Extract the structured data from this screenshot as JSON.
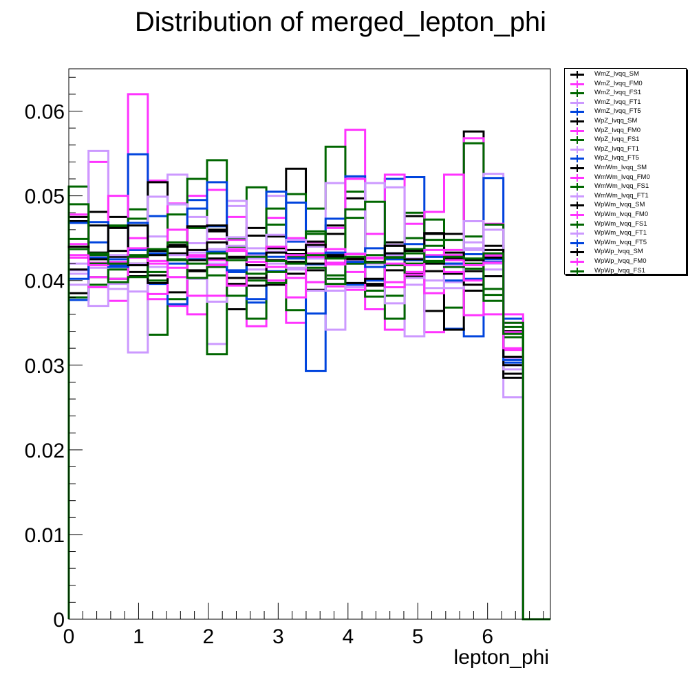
{
  "chart_data": {
    "type": "histogram",
    "title": "Distribution of merged_lepton_phi",
    "xlabel": "lepton_phi",
    "ylabel": "",
    "xlim": [
      0,
      6.9
    ],
    "ylim": [
      0,
      0.065
    ],
    "xticks": [
      "0",
      "1",
      "2",
      "3",
      "4",
      "5",
      "6"
    ],
    "yticks": [
      "0",
      "0.01",
      "0.02",
      "0.03",
      "0.04",
      "0.05",
      "0.06"
    ],
    "bin_edges": [
      0,
      0.283,
      0.566,
      0.849,
      1.132,
      1.415,
      1.698,
      1.981,
      2.264,
      2.547,
      2.83,
      3.113,
      3.396,
      3.679,
      3.962,
      4.245,
      4.528,
      4.811,
      5.094,
      5.377,
      5.66,
      5.943,
      6.226,
      6.509,
      6.9
    ],
    "legend_position": "top-right",
    "series": [
      {
        "name": "WmZ_lvqq_SM",
        "color": "#000000",
        "values": [
          0.0385,
          0.0481,
          0.0475,
          0.041,
          0.0435,
          0.0442,
          0.0411,
          0.046,
          0.0366,
          0.0462,
          0.0395,
          0.0532,
          0.0389,
          0.0465,
          0.0497,
          0.0388,
          0.0445,
          0.0409,
          0.0364,
          0.0455,
          0.0576,
          0.0441,
          0.029,
          0
        ]
      },
      {
        "name": "WmZ_lvqq_FM0",
        "color": "#ff33ff",
        "values": [
          0.0478,
          0.054,
          0.0376,
          0.062,
          0.0518,
          0.037,
          0.05,
          0.0507,
          0.0448,
          0.0346,
          0.0474,
          0.035,
          0.0432,
          0.0462,
          0.0578,
          0.0366,
          0.0342,
          0.0467,
          0.0339,
          0.043,
          0.0568,
          0.036,
          0.035,
          0
        ]
      },
      {
        "name": "WmZ_lvqq_FS1",
        "color": "#006600",
        "values": [
          0.0511,
          0.0418,
          0.0463,
          0.0484,
          0.0336,
          0.0378,
          0.0462,
          0.0542,
          0.0403,
          0.051,
          0.0466,
          0.0502,
          0.0485,
          0.0558,
          0.0505,
          0.0388,
          0.0428,
          0.048,
          0.0448,
          0.0368,
          0.0562,
          0.0383,
          0.0333,
          0
        ]
      },
      {
        "name": "WmZ_lvqq_FT1",
        "color": "#cc99ff",
        "values": [
          0.0408,
          0.0553,
          0.0428,
          0.0315,
          0.0452,
          0.0525,
          0.0444,
          0.0325,
          0.0494,
          0.0413,
          0.05,
          0.042,
          0.0388,
          0.0515,
          0.0522,
          0.042,
          0.0442,
          0.0334,
          0.04,
          0.0448,
          0.0438,
          0.0526,
          0.0262,
          0
        ]
      },
      {
        "name": "WmZ_lvqq_FT5",
        "color": "#0044dd",
        "values": [
          0.0377,
          0.0445,
          0.0425,
          0.0549,
          0.0476,
          0.049,
          0.0495,
          0.0464,
          0.041,
          0.0374,
          0.0505,
          0.0446,
          0.0293,
          0.0473,
          0.0523,
          0.04,
          0.052,
          0.0522,
          0.0428,
          0.0343,
          0.0334,
          0.0521,
          0.0355,
          0
        ]
      },
      {
        "name": "WpZ_lvqq_SM",
        "color": "#000000",
        "values": [
          0.047,
          0.0404,
          0.0462,
          0.0405,
          0.0516,
          0.0432,
          0.0412,
          0.0458,
          0.0427,
          0.0453,
          0.0452,
          0.0436,
          0.0412,
          0.0455,
          0.0427,
          0.0394,
          0.0412,
          0.0476,
          0.0455,
          0.0342,
          0.0388,
          0.0405,
          0.0285,
          0
        ]
      },
      {
        "name": "WpZ_lvqq_FM0",
        "color": "#ff33ff",
        "values": [
          0.0475,
          0.0421,
          0.05,
          0.045,
          0.0378,
          0.0491,
          0.036,
          0.0449,
          0.0475,
          0.0418,
          0.04,
          0.045,
          0.0445,
          0.0421,
          0.052,
          0.0455,
          0.0525,
          0.041,
          0.0481,
          0.0525,
          0.0359,
          0.0467,
          0.036,
          0
        ]
      },
      {
        "name": "WpZ_lvqq_FS1",
        "color": "#006600",
        "values": [
          0.038,
          0.042,
          0.0465,
          0.0473,
          0.04,
          0.0478,
          0.052,
          0.0313,
          0.045,
          0.0355,
          0.0485,
          0.0365,
          0.0455,
          0.0402,
          0.0474,
          0.0381,
          0.0355,
          0.045,
          0.0472,
          0.042,
          0.0452,
          0.0466,
          0.034,
          0
        ]
      },
      {
        "name": "WpZ_lvqq_FT1",
        "color": "#cc99ff",
        "values": [
          0.0412,
          0.037,
          0.0396,
          0.043,
          0.0499,
          0.049,
          0.0475,
          0.0375,
          0.0488,
          0.0438,
          0.0454,
          0.0413,
          0.0398,
          0.0342,
          0.0392,
          0.0515,
          0.051,
          0.0395,
          0.0391,
          0.0398,
          0.0445,
          0.046,
          0.03,
          0
        ]
      },
      {
        "name": "WpZ_lvqq_FT5",
        "color": "#0044dd",
        "values": [
          0.0468,
          0.0469,
          0.0418,
          0.0468,
          0.0396,
          0.0372,
          0.0485,
          0.0516,
          0.041,
          0.0378,
          0.0411,
          0.0492,
          0.0361,
          0.0432,
          0.0395,
          0.0438,
          0.0425,
          0.0443,
          0.0422,
          0.04,
          0.0402,
          0.0425,
          0.0303,
          0
        ]
      },
      {
        "name": "WmWm_lvqq_SM",
        "color": "#000000",
        "values": [
          0.0475,
          0.0465,
          0.0428,
          0.0465,
          0.0406,
          0.0386,
          0.0464,
          0.0465,
          0.0403,
          0.0394,
          0.0438,
          0.0408,
          0.0446,
          0.0428,
          0.042,
          0.0396,
          0.0441,
          0.0405,
          0.0456,
          0.0426,
          0.0411,
          0.043,
          0.034,
          0
        ]
      },
      {
        "name": "WmWm_lvqq_FM0",
        "color": "#ff33ff",
        "values": [
          0.0427,
          0.0392,
          0.042,
          0.0428,
          0.0384,
          0.046,
          0.0382,
          0.0382,
          0.0437,
          0.0426,
          0.0397,
          0.038,
          0.044,
          0.0393,
          0.0389,
          0.0427,
          0.0398,
          0.041,
          0.0385,
          0.0436,
          0.047,
          0.0428,
          0.0339,
          0
        ]
      },
      {
        "name": "WmWm_lvqq_FS1",
        "color": "#006600",
        "values": [
          0.0449,
          0.0395,
          0.0413,
          0.043,
          0.041,
          0.0445,
          0.0425,
          0.0406,
          0.0382,
          0.04,
          0.0397,
          0.0427,
          0.0458,
          0.0406,
          0.0484,
          0.0493,
          0.0382,
          0.0437,
          0.0441,
          0.0448,
          0.0414,
          0.0376,
          0.035,
          0
        ]
      },
      {
        "name": "WmWm_lvqq_FT1",
        "color": "#cc99ff",
        "values": [
          0.0395,
          0.0428,
          0.039,
          0.0387,
          0.0416,
          0.0404,
          0.0402,
          0.0437,
          0.0451,
          0.043,
          0.042,
          0.0448,
          0.044,
          0.0388,
          0.0432,
          0.0421,
          0.0373,
          0.0403,
          0.042,
          0.0391,
          0.047,
          0.0413,
          0.0295,
          0
        ]
      },
      {
        "name": "WpWm_lvqq_SM",
        "color": "#000000",
        "values": [
          0.0413,
          0.0433,
          0.0402,
          0.042,
          0.0397,
          0.044,
          0.0436,
          0.0445,
          0.0396,
          0.0403,
          0.0424,
          0.0422,
          0.0442,
          0.0433,
          0.0397,
          0.0402,
          0.0441,
          0.0435,
          0.0411,
          0.0408,
          0.0395,
          0.0436,
          0.03,
          0
        ]
      },
      {
        "name": "WpWm_lvqq_FM0",
        "color": "#ff33ff",
        "values": [
          0.0443,
          0.0404,
          0.0402,
          0.0427,
          0.042,
          0.0404,
          0.043,
          0.0424,
          0.0394,
          0.0418,
          0.044,
          0.0403,
          0.0398,
          0.0437,
          0.041,
          0.0421,
          0.0392,
          0.0407,
          0.043,
          0.041,
          0.04,
          0.043,
          0.0318,
          0
        ]
      },
      {
        "name": "WpWm_lvqq_FS1",
        "color": "#006600",
        "values": [
          0.049,
          0.043,
          0.0398,
          0.0404,
          0.0432,
          0.0425,
          0.0403,
          0.0416,
          0.044,
          0.0408,
          0.041,
          0.0428,
          0.0415,
          0.0396,
          0.042,
          0.043,
          0.0418,
          0.042,
          0.0423,
          0.0416,
          0.042,
          0.039,
          0.0345,
          0
        ]
      },
      {
        "name": "WpWm_lvqq_FT1",
        "color": "#cc99ff",
        "values": [
          0.042,
          0.0415,
          0.043,
          0.042,
          0.0423,
          0.043,
          0.0433,
          0.042,
          0.0441,
          0.0426,
          0.0434,
          0.0415,
          0.0426,
          0.0433,
          0.0423,
          0.0416,
          0.043,
          0.0426,
          0.0428,
          0.0418,
          0.0436,
          0.042,
          0.0308,
          0
        ]
      },
      {
        "name": "WpWm_lvqq_FT5",
        "color": "#0044dd",
        "values": [
          0.0402,
          0.0427,
          0.0416,
          0.0436,
          0.0432,
          0.042,
          0.0425,
          0.0434,
          0.0412,
          0.0432,
          0.0428,
          0.0426,
          0.0419,
          0.0433,
          0.0422,
          0.0416,
          0.0432,
          0.0424,
          0.0428,
          0.042,
          0.0431,
          0.0422,
          0.0306,
          0
        ]
      },
      {
        "name": "WpWp_lvqq_SM",
        "color": "#000000",
        "values": [
          0.044,
          0.0425,
          0.0435,
          0.0418,
          0.043,
          0.044,
          0.0424,
          0.0426,
          0.0428,
          0.0418,
          0.0433,
          0.0431,
          0.042,
          0.043,
          0.0425,
          0.0422,
          0.0432,
          0.0425,
          0.042,
          0.0433,
          0.0424,
          0.0427,
          0.031,
          0
        ]
      },
      {
        "name": "WpWp_lvqq_FM0",
        "color": "#ff33ff",
        "values": [
          0.043,
          0.0418,
          0.0422,
          0.0438,
          0.0423,
          0.0415,
          0.0428,
          0.0418,
          0.0435,
          0.0422,
          0.0416,
          0.043,
          0.0428,
          0.0419,
          0.0431,
          0.0426,
          0.042,
          0.0418,
          0.0436,
          0.0424,
          0.0418,
          0.0421,
          0.032,
          0
        ]
      },
      {
        "name": "WpWp_lvqq_FS1",
        "color": "#006600",
        "values": [
          0.0437,
          0.0432,
          0.042,
          0.0428,
          0.0437,
          0.0424,
          0.042,
          0.0432,
          0.0424,
          0.0428,
          0.0423,
          0.042,
          0.043,
          0.0426,
          0.0428,
          0.0421,
          0.0427,
          0.0432,
          0.0422,
          0.0428,
          0.0426,
          0.0432,
          0.0337,
          0
        ]
      }
    ]
  }
}
